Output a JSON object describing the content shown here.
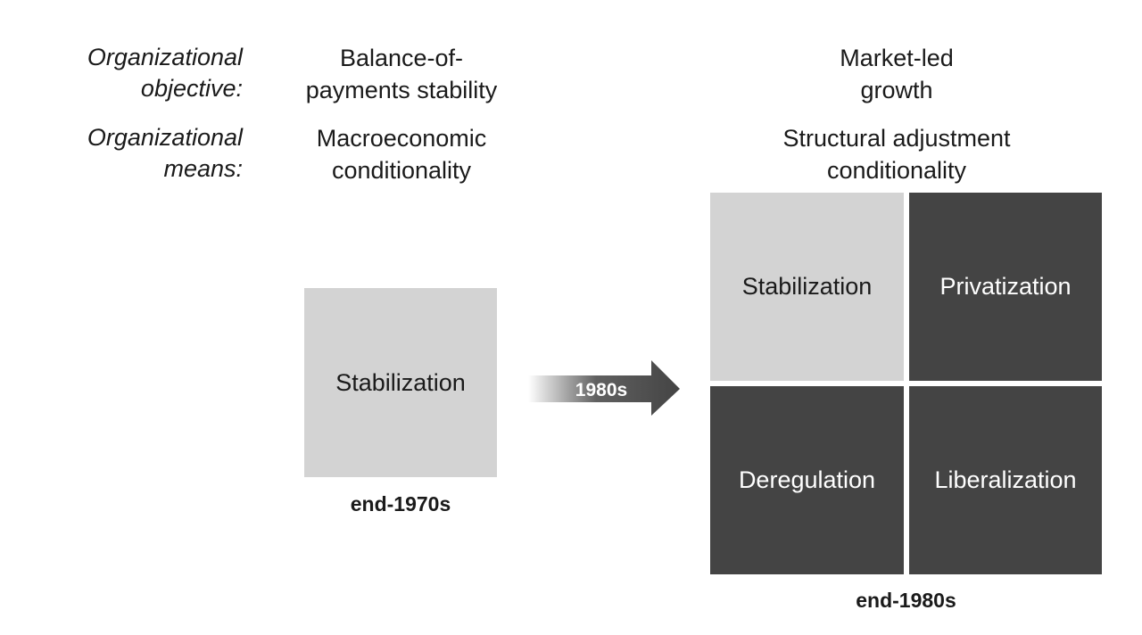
{
  "row_labels": {
    "objective": [
      "Organizational",
      "objective:"
    ],
    "means": [
      "Organizational",
      "means:"
    ]
  },
  "before": {
    "objective": [
      "Balance-of-",
      "payments stability"
    ],
    "means": [
      "Macroeconomic",
      "conditionality"
    ],
    "box": "Stabilization",
    "era": "end-1970s"
  },
  "transition": {
    "label": "1980s"
  },
  "after": {
    "objective": [
      "Market-led",
      "growth"
    ],
    "means": [
      "Structural adjustment",
      "conditionality"
    ],
    "boxes": [
      "Stabilization",
      "Privatization",
      "Deregulation",
      "Liberalization"
    ],
    "era": "end-1980s"
  },
  "colors": {
    "light_box": "#d3d3d3",
    "dark_box": "#444444",
    "arrow": "#444444"
  }
}
